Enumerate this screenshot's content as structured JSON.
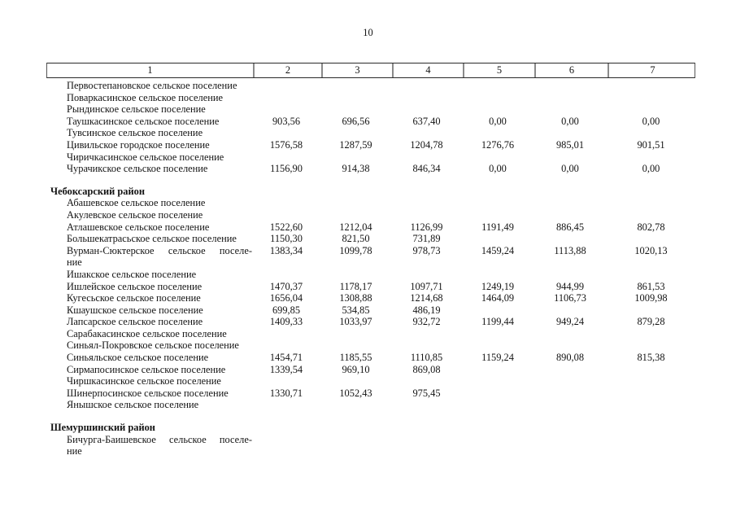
{
  "page": {
    "number": "10"
  },
  "table": {
    "headers": [
      "1",
      "2",
      "3",
      "4",
      "5",
      "6",
      "7"
    ],
    "sections": [
      {
        "title": "",
        "rows": [
          {
            "name": "Первостепановское сельское поселение",
            "values": [
              "",
              "",
              "",
              "",
              "",
              ""
            ]
          },
          {
            "name": "Поваркасинское сельское поселение",
            "values": [
              "",
              "",
              "",
              "",
              "",
              ""
            ]
          },
          {
            "name": "Рындинское сельское поселение",
            "values": [
              "",
              "",
              "",
              "",
              "",
              ""
            ]
          },
          {
            "name": "Таушкасинское сельское поселение",
            "values": [
              "903,56",
              "696,56",
              "637,40",
              "0,00",
              "0,00",
              "0,00"
            ]
          },
          {
            "name": "Тувсинское сельское поселение",
            "values": [
              "",
              "",
              "",
              "",
              "",
              ""
            ]
          },
          {
            "name": "Цивильское городское поселение",
            "values": [
              "1576,58",
              "1287,59",
              "1204,78",
              "1276,76",
              "985,01",
              "901,51"
            ]
          },
          {
            "name": "Чиричкасинское сельское поселение",
            "values": [
              "",
              "",
              "",
              "",
              "",
              ""
            ]
          },
          {
            "name": "Чурачикское сельское поселение",
            "values": [
              "1156,90",
              "914,38",
              "846,34",
              "0,00",
              "0,00",
              "0,00"
            ]
          }
        ]
      },
      {
        "title": "Чебоксарский район",
        "rows": [
          {
            "name": "Абашевское сельское поселение",
            "values": [
              "",
              "",
              "",
              "",
              "",
              ""
            ]
          },
          {
            "name": "Акулевское сельское поселение",
            "values": [
              "",
              "",
              "",
              "",
              "",
              ""
            ]
          },
          {
            "name": "Атлашевское сельское поселение",
            "values": [
              "1522,60",
              "1212,04",
              "1126,99",
              "1191,49",
              "886,45",
              "802,78"
            ]
          },
          {
            "name": "Большекатрасьское сельское поселение",
            "values": [
              "1150,30",
              "821,50",
              "731,89",
              "",
              "",
              ""
            ]
          },
          {
            "name": "Вурман-Сюктерское сельское поселе-",
            "name2": "ние",
            "values": [
              "1383,34",
              "1099,78",
              "978,73",
              "1459,24",
              "1113,88",
              "1020,13"
            ]
          },
          {
            "name": "Ишакское сельское поселение",
            "values": [
              "",
              "",
              "",
              "",
              "",
              ""
            ]
          },
          {
            "name": "Ишлейское сельское поселение",
            "values": [
              "1470,37",
              "1178,17",
              "1097,71",
              "1249,19",
              "944,99",
              "861,53"
            ]
          },
          {
            "name": "Кугесьское сельское поселение",
            "values": [
              "1656,04",
              "1308,88",
              "1214,68",
              "1464,09",
              "1106,73",
              "1009,98"
            ]
          },
          {
            "name": "Кшаушское сельское поселение",
            "values": [
              "699,85",
              "534,85",
              "486,19",
              "",
              "",
              ""
            ]
          },
          {
            "name": "Лапсарское сельское поселение",
            "values": [
              "1409,33",
              "1033,97",
              "932,72",
              "1199,44",
              "949,24",
              "879,28"
            ]
          },
          {
            "name": "Сарабакасинское сельское поселение",
            "values": [
              "",
              "",
              "",
              "",
              "",
              ""
            ]
          },
          {
            "name": "Синьял-Покровское сельское поселение",
            "values": [
              "",
              "",
              "",
              "",
              "",
              ""
            ]
          },
          {
            "name": "Синьяльское сельское поселение",
            "values": [
              "1454,71",
              "1185,55",
              "1110,85",
              "1159,24",
              "890,08",
              "815,38"
            ]
          },
          {
            "name": "Сирмапосинское сельское поселение",
            "values": [
              "1339,54",
              "969,10",
              "869,08",
              "",
              "",
              ""
            ]
          },
          {
            "name": "Чиршкасинское сельское поселение",
            "values": [
              "",
              "",
              "",
              "",
              "",
              ""
            ]
          },
          {
            "name": "Шинерпосинское сельское поселение",
            "values": [
              "1330,71",
              "1052,43",
              "975,45",
              "",
              "",
              ""
            ]
          },
          {
            "name": "Янышское сельское поселение",
            "values": [
              "",
              "",
              "",
              "",
              "",
              ""
            ]
          }
        ]
      },
      {
        "title": "Шемуршинский район",
        "rows": [
          {
            "name": "Бичурга-Баишевское сельское поселе-",
            "name2": "ние",
            "values": [
              "",
              "",
              "",
              "",
              "",
              ""
            ]
          }
        ]
      }
    ]
  }
}
